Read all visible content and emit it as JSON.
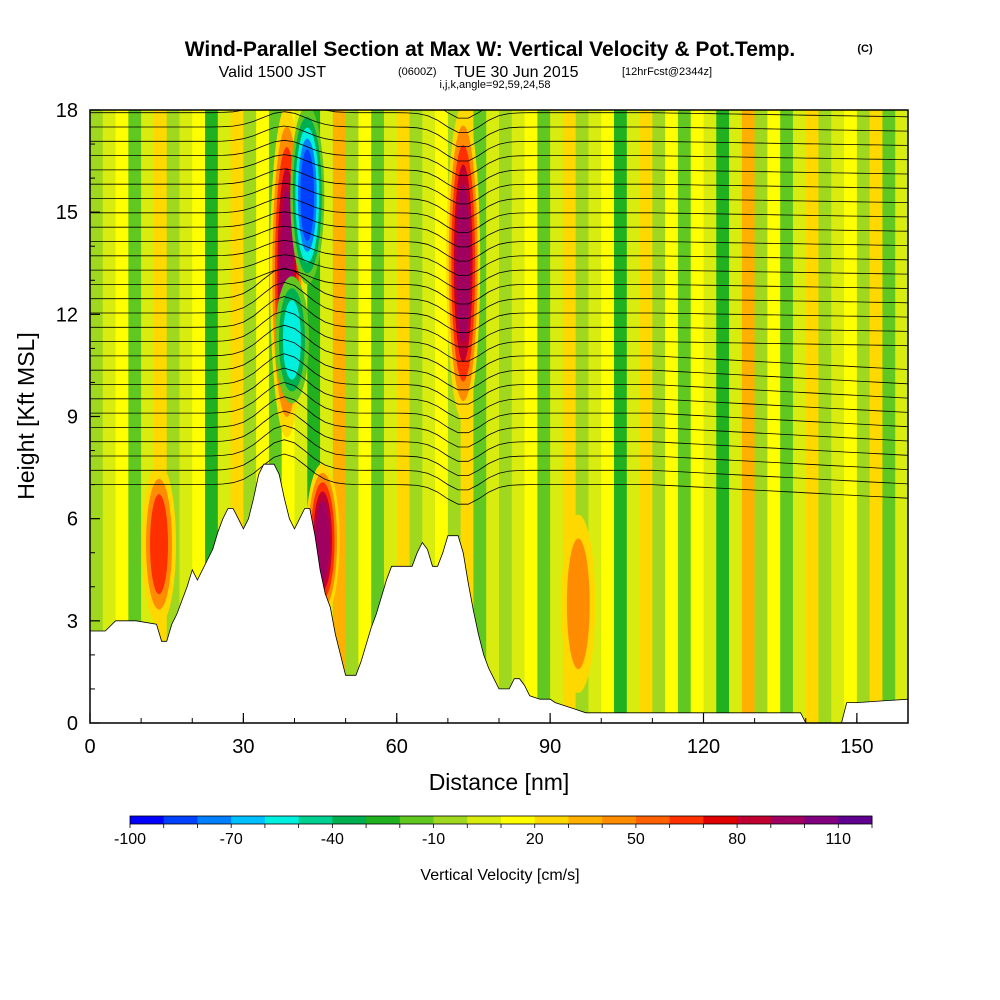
{
  "title": {
    "main": "Wind-Parallel Section at Max W: Vertical Velocity & Pot.Temp.",
    "copyright": "(C)",
    "valid_prefix": "Valid 1500 JST",
    "valid_utc": "(0600Z)",
    "valid_date": "TUE 30 Jun 2015",
    "forecast": "[12hrFcst@2344z]",
    "params": "i,j,k,angle=92,59,24,58"
  },
  "chart_data": {
    "type": "heatmap",
    "title": "Wind-Parallel Section at Max W: Vertical Velocity & Pot.Temp.",
    "xlabel": "Distance [nm]",
    "ylabel": "Height [Kft MSL]",
    "xlim": [
      0,
      160
    ],
    "ylim": [
      0,
      18
    ],
    "x_ticks": [
      "0",
      "30",
      "60",
      "90",
      "120",
      "150"
    ],
    "y_ticks": [
      "0",
      "3",
      "6",
      "9",
      "12",
      "15",
      "18"
    ],
    "x_tick_values": [
      0,
      30,
      60,
      90,
      120,
      150
    ],
    "y_tick_values": [
      0,
      3,
      6,
      9,
      12,
      15,
      18
    ],
    "colorbar": {
      "label": "Vertical Velocity [cm/s]",
      "min": -100,
      "max": 120,
      "step": 10,
      "tick_labels": [
        "-100",
        "-70",
        "-40",
        "-10",
        "20",
        "50",
        "80",
        "110"
      ],
      "tick_values": [
        -100,
        -70,
        -40,
        -10,
        20,
        50,
        80,
        110
      ],
      "colors": [
        "#0000ff",
        "#0040ff",
        "#0080ff",
        "#00c0ff",
        "#00f0e0",
        "#00d090",
        "#00b050",
        "#20b020",
        "#60c820",
        "#a0d820",
        "#d8ec10",
        "#ffff00",
        "#ffd800",
        "#ffb000",
        "#ff8c00",
        "#ff6000",
        "#ff3000",
        "#e00000",
        "#c00030",
        "#a00060",
        "#800080",
        "#600090"
      ]
    },
    "terrain_kft": [
      [
        0,
        2.7
      ],
      [
        3,
        2.7
      ],
      [
        5,
        3.0
      ],
      [
        9,
        3.0
      ],
      [
        13,
        2.9
      ],
      [
        14,
        2.4
      ],
      [
        15,
        2.4
      ],
      [
        16,
        2.9
      ],
      [
        17,
        3.2
      ],
      [
        18,
        3.6
      ],
      [
        19,
        4.0
      ],
      [
        20,
        4.5
      ],
      [
        21,
        4.2
      ],
      [
        22,
        4.5
      ],
      [
        23,
        4.8
      ],
      [
        24,
        5.1
      ],
      [
        25,
        5.6
      ],
      [
        26,
        6.0
      ],
      [
        27,
        6.3
      ],
      [
        28,
        6.3
      ],
      [
        29,
        6.0
      ],
      [
        30,
        5.7
      ],
      [
        31,
        6.0
      ],
      [
        32,
        6.6
      ],
      [
        33,
        7.3
      ],
      [
        34,
        7.6
      ],
      [
        36,
        7.6
      ],
      [
        37,
        7.3
      ],
      [
        38,
        6.6
      ],
      [
        39,
        6.0
      ],
      [
        40,
        5.7
      ],
      [
        41,
        6.0
      ],
      [
        42,
        6.3
      ],
      [
        43,
        6.3
      ],
      [
        44,
        5.5
      ],
      [
        45,
        4.5
      ],
      [
        46,
        3.8
      ],
      [
        47,
        3.4
      ],
      [
        48,
        2.6
      ],
      [
        49,
        2.0
      ],
      [
        50,
        1.4
      ],
      [
        52,
        1.4
      ],
      [
        53,
        1.8
      ],
      [
        54,
        2.3
      ],
      [
        55,
        2.8
      ],
      [
        56,
        3.2
      ],
      [
        57,
        3.7
      ],
      [
        58,
        4.2
      ],
      [
        59,
        4.6
      ],
      [
        60,
        4.6
      ],
      [
        63,
        4.6
      ],
      [
        64,
        5.0
      ],
      [
        65,
        5.3
      ],
      [
        66,
        5.1
      ],
      [
        67,
        4.6
      ],
      [
        68,
        4.6
      ],
      [
        69,
        5.0
      ],
      [
        70,
        5.5
      ],
      [
        72,
        5.5
      ],
      [
        73,
        5.0
      ],
      [
        74,
        4.1
      ],
      [
        75,
        3.3
      ],
      [
        76,
        2.6
      ],
      [
        77,
        2.0
      ],
      [
        78,
        1.6
      ],
      [
        79,
        1.3
      ],
      [
        80,
        1.0
      ],
      [
        82,
        1.0
      ],
      [
        83,
        1.3
      ],
      [
        84,
        1.3
      ],
      [
        85,
        1.1
      ],
      [
        86,
        0.8
      ],
      [
        88,
        0.7
      ],
      [
        90,
        0.7
      ],
      [
        91,
        0.6
      ],
      [
        93,
        0.5
      ],
      [
        95,
        0.4
      ],
      [
        97,
        0.3
      ],
      [
        100,
        0.3
      ],
      [
        120,
        0.3
      ],
      [
        130,
        0.3
      ],
      [
        139,
        0.3
      ],
      [
        140,
        0.0
      ],
      [
        147,
        0.0
      ],
      [
        148,
        0.6
      ],
      [
        150,
        0.6
      ],
      [
        160,
        0.7
      ]
    ],
    "updraft_cores": [
      {
        "x": 38.5,
        "y_min": 8.5,
        "y_max": 18,
        "peak": 90
      },
      {
        "x": 45.5,
        "y_min": 3.2,
        "y_max": 7.5,
        "peak": 90
      },
      {
        "x": 73,
        "y_min": 9.0,
        "y_max": 18,
        "peak": 90
      },
      {
        "x": 13.5,
        "y_min": 3.0,
        "y_max": 7.5,
        "peak": 60
      },
      {
        "x": 95.5,
        "y_min": 1.0,
        "y_max": 6.0,
        "peak": 50
      }
    ],
    "downdraft_cores": [
      {
        "x": 42.5,
        "y_min": 13.0,
        "y_max": 18,
        "peak": -90
      },
      {
        "x": 39.5,
        "y_min": 9.5,
        "y_max": 13.0,
        "peak": -60
      }
    ]
  }
}
